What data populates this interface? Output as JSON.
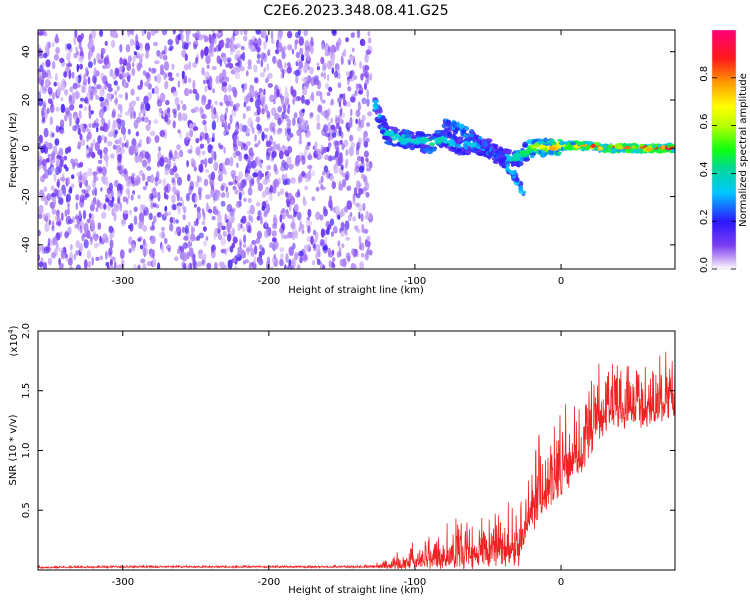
{
  "title": "C2E6.2023.348.08.41.G25",
  "colors": {
    "axis": "#000000",
    "snr_line": "#ee2222",
    "noise_base": "#7a3cf0"
  },
  "chart_data": [
    {
      "type": "heatmap",
      "name": "spectrogram",
      "xlabel": "Height of straight line (km)",
      "ylabel": "Frequency (Hz)",
      "xlim": [
        -358,
        78
      ],
      "ylim": [
        -50,
        49
      ],
      "xticks": [
        {
          "value": -300,
          "label": "-300"
        },
        {
          "value": -200,
          "label": "-200"
        },
        {
          "value": -100,
          "label": "-100"
        },
        {
          "value": 0,
          "label": "0"
        }
      ],
      "yticks": [
        {
          "value": -40,
          "label": "-40"
        },
        {
          "value": -20,
          "label": "-20"
        },
        {
          "value": 0,
          "label": "0"
        },
        {
          "value": 20,
          "label": "20"
        },
        {
          "value": 40,
          "label": "40"
        }
      ],
      "noise_region": {
        "x_from": -358,
        "x_to": -130,
        "level": 0.12
      },
      "signal_trace": {
        "x": [
          -128,
          -120,
          -110,
          -100,
          -90,
          -80,
          -70,
          -60,
          -50,
          -40,
          -30,
          -25,
          -20,
          -10,
          0,
          10,
          20,
          30,
          40,
          50,
          60,
          70,
          78
        ],
        "y": [
          20,
          6,
          4,
          3,
          2,
          4,
          1,
          2,
          0,
          -4,
          -4,
          -2,
          0,
          0,
          1,
          1,
          1,
          0,
          0,
          0,
          0,
          0,
          0
        ],
        "amplitude": [
          0.35,
          0.4,
          0.45,
          0.4,
          0.45,
          0.4,
          0.35,
          0.4,
          0.35,
          0.3,
          0.45,
          0.5,
          0.6,
          0.75,
          0.8,
          0.85,
          0.9,
          0.9,
          0.92,
          0.95,
          0.95,
          0.95,
          0.95
        ]
      },
      "diagonal_branch": {
        "x": [
          -80,
          -70,
          -60,
          -50,
          -40,
          -30,
          -25
        ],
        "y": [
          10,
          8,
          5,
          0,
          -5,
          -13,
          -20
        ]
      },
      "colorbar": {
        "label": "Normalized spectral amplitude",
        "range": [
          0.0,
          1.0
        ],
        "ticks": [
          {
            "value": 0.0,
            "label": "0.0"
          },
          {
            "value": 0.2,
            "label": "0.2"
          },
          {
            "value": 0.4,
            "label": "0.4"
          },
          {
            "value": 0.6,
            "label": "0.6"
          },
          {
            "value": 0.8,
            "label": "0.8"
          }
        ]
      }
    },
    {
      "type": "line",
      "name": "snr",
      "xlabel": "Height of straight line (km)",
      "ylabel": "SNR (10 * v/v)",
      "yscale_label": "(x10",
      "yscale_exponent": "4",
      "xlim": [
        -358,
        78
      ],
      "ylim": [
        0,
        20000
      ],
      "xticks": [
        {
          "value": -300,
          "label": "-300"
        },
        {
          "value": -200,
          "label": "-200"
        },
        {
          "value": -100,
          "label": "-100"
        },
        {
          "value": 0,
          "label": "0"
        }
      ],
      "yticks": [
        {
          "value": 5000,
          "label": "0.5"
        },
        {
          "value": 10000,
          "label": "1.0"
        },
        {
          "value": 15000,
          "label": "1.5"
        },
        {
          "value": 20000,
          "label": "2.0"
        }
      ],
      "envelope": {
        "x": [
          -358,
          -300,
          -200,
          -130,
          -120,
          -110,
          -100,
          -90,
          -80,
          -70,
          -60,
          -50,
          -40,
          -30,
          -25,
          -20,
          -10,
          0,
          10,
          20,
          30,
          40,
          50,
          60,
          70,
          78
        ],
        "base": [
          200,
          250,
          250,
          250,
          300,
          400,
          600,
          800,
          1000,
          1200,
          1000,
          1400,
          1600,
          1400,
          3000,
          5000,
          7000,
          8000,
          9000,
          11000,
          13000,
          13000,
          13500,
          13500,
          14000,
          14000
        ],
        "spread": [
          150,
          150,
          150,
          200,
          800,
          1500,
          2000,
          2500,
          3000,
          3500,
          3000,
          3500,
          4000,
          4000,
          5000,
          6000,
          6000,
          6000,
          6000,
          5500,
          5000,
          5000,
          5000,
          5000,
          5000,
          5000
        ]
      }
    }
  ]
}
